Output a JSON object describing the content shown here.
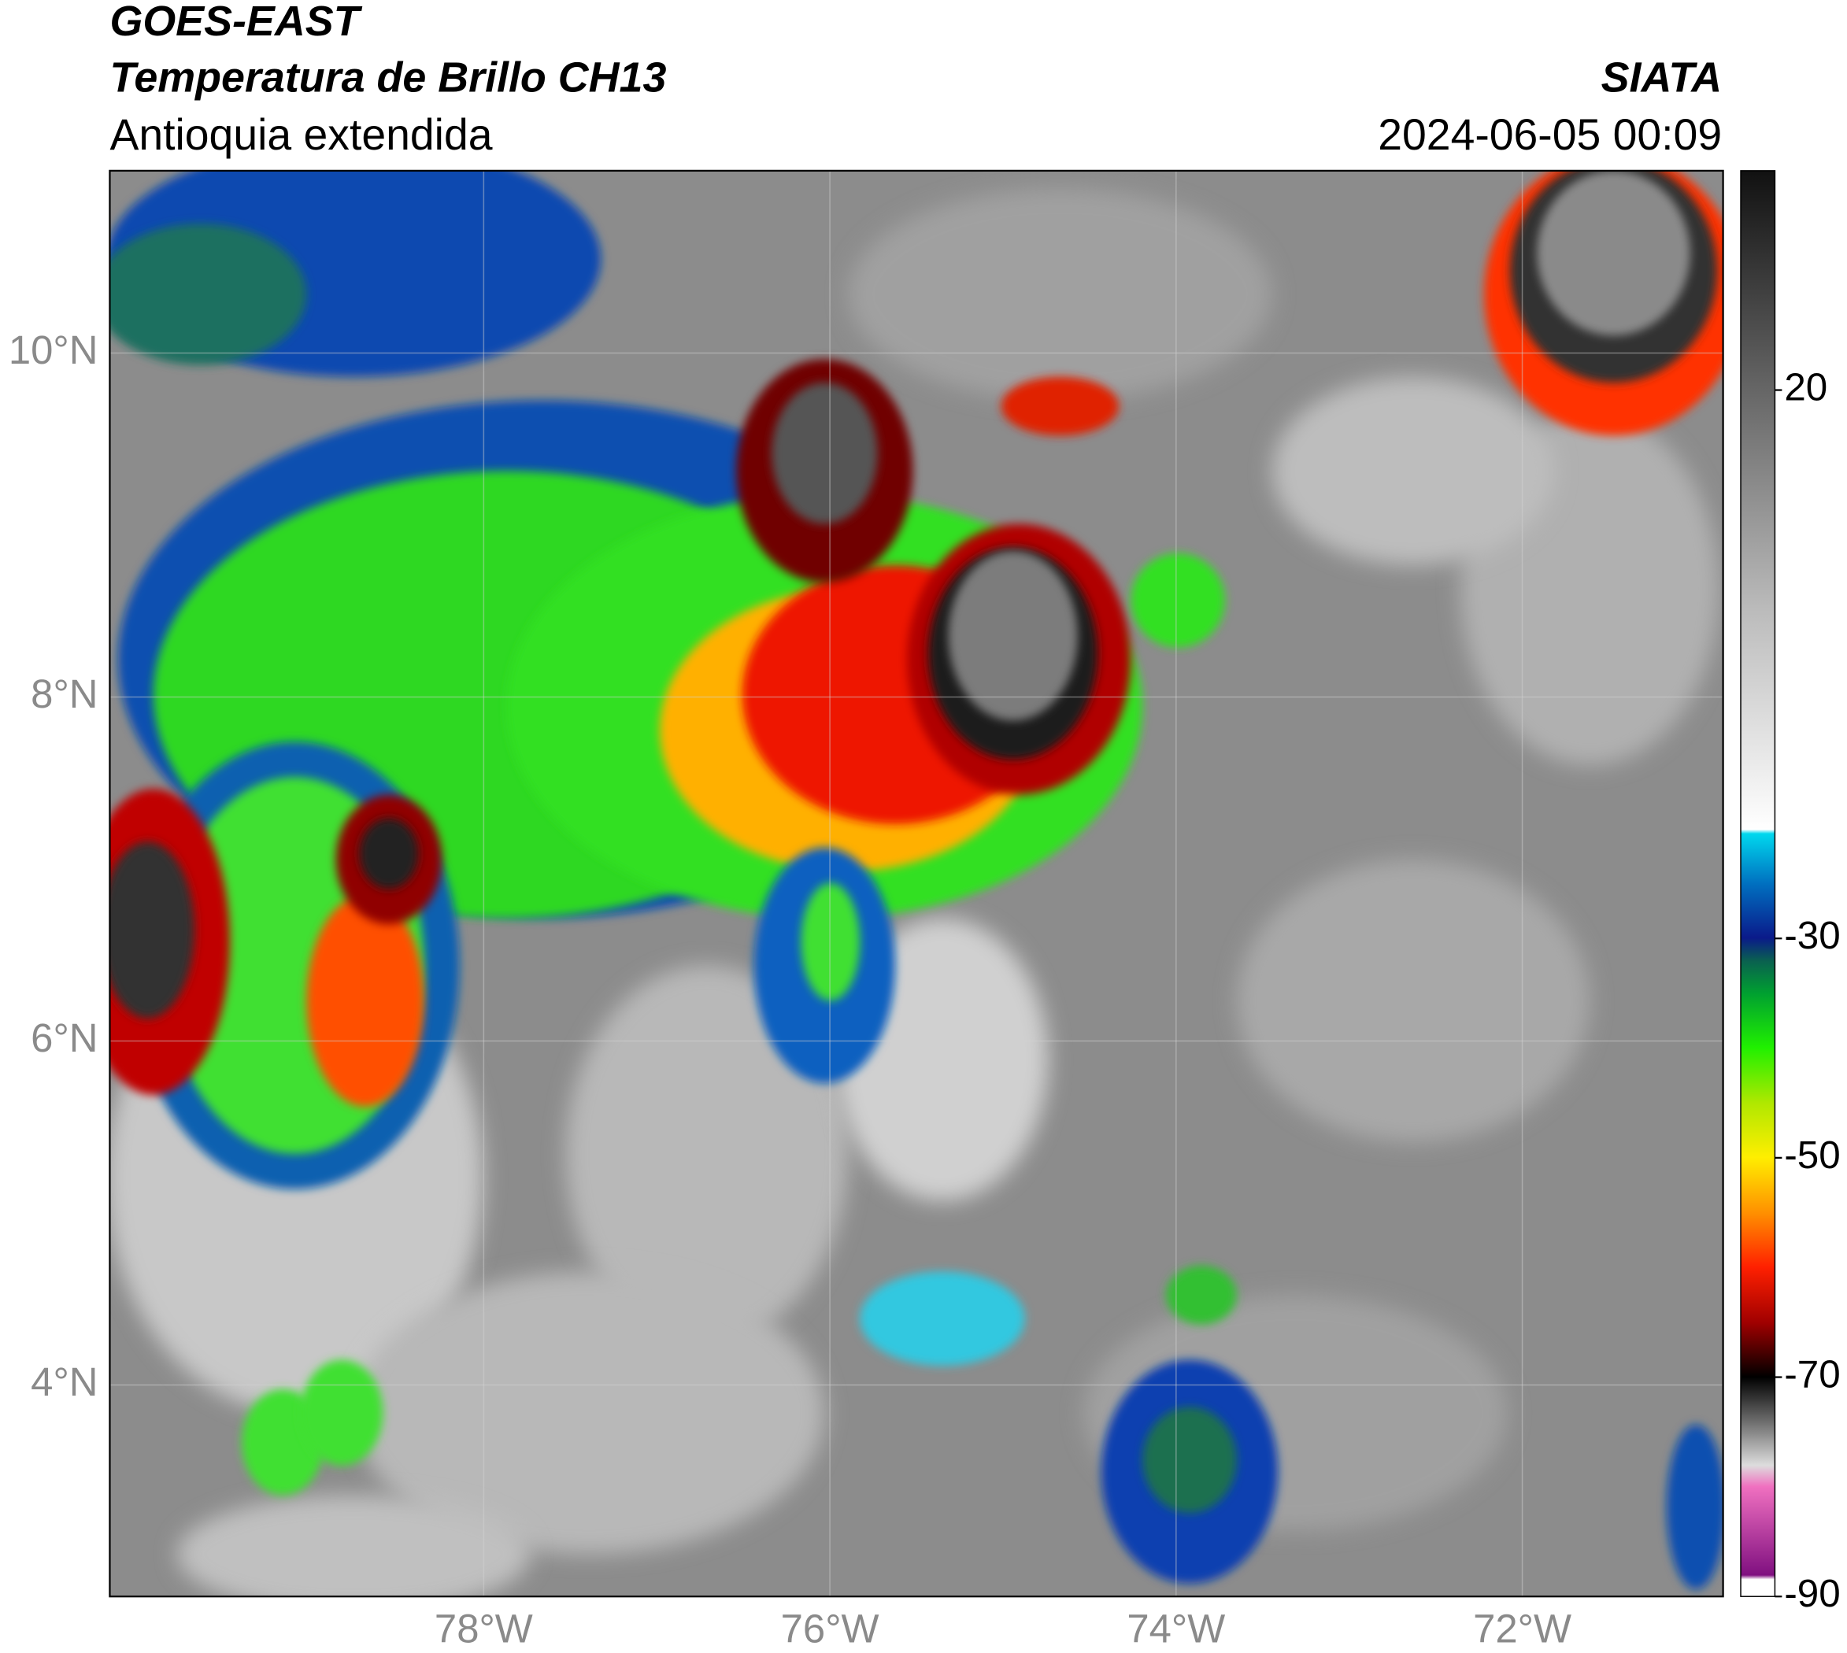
{
  "header": {
    "satellite": "GOES-EAST",
    "product": "Temperatura de Brillo CH13",
    "region": "Antioquia extendida",
    "source": "SIATA",
    "datetime": "2024-06-05 00:09"
  },
  "map": {
    "xlim": [
      -80.16,
      -70.84
    ],
    "ylim": [
      2.77,
      11.06
    ],
    "xticks": [
      {
        "value": -78,
        "label": "78°W"
      },
      {
        "value": -76,
        "label": "76°W"
      },
      {
        "value": -74,
        "label": "74°W"
      },
      {
        "value": -72,
        "label": "72°W"
      }
    ],
    "yticks": [
      {
        "value": 10,
        "label": "10°N"
      },
      {
        "value": 8,
        "label": "8°N"
      },
      {
        "value": 6,
        "label": "6°N"
      },
      {
        "value": 4,
        "label": "4°N"
      }
    ],
    "grid": true
  },
  "colorbar": {
    "lim": [
      -90,
      40
    ],
    "ticks": [
      20,
      -30,
      -50,
      -70,
      -90
    ]
  }
}
